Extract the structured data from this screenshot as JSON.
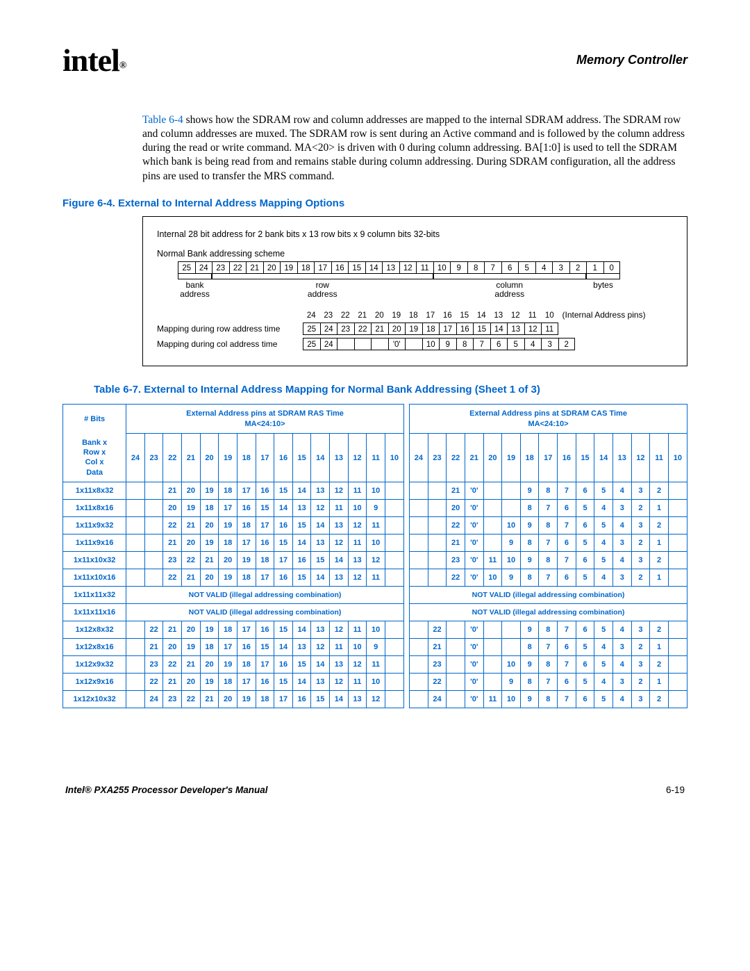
{
  "header": {
    "logo_text": "intel",
    "logo_reg": "®",
    "section_title": "Memory Controller"
  },
  "paragraph": {
    "ref": "Table 6-4",
    "text": " shows how the SDRAM row and column addresses are mapped to the internal SDRAM address. The SDRAM row and column addresses are muxed. The SDRAM row is sent during an Active command and is followed by the column address during the read or write command. MA<20> is driven with 0 during column addressing. BA[1:0] is used to tell the SDRAM which bank is being read from and remains stable during column addressing. During SDRAM configuration, all the address pins are used to transfer the MRS command."
  },
  "figure": {
    "caption": "Figure 6-4. External to Internal Address Mapping Options",
    "line1": "Internal 28 bit address for 2 bank bits x 13 row bits x 9 column bits 32-bits",
    "line2": "Normal Bank addressing scheme",
    "bits_top": [
      "25",
      "24",
      "23",
      "22",
      "21",
      "20",
      "19",
      "18",
      "17",
      "16",
      "15",
      "14",
      "13",
      "12",
      "11",
      "10",
      "9",
      "8",
      "7",
      "6",
      "5",
      "4",
      "3",
      "2",
      "1",
      "0"
    ],
    "spans": [
      {
        "label": "bank address",
        "col_start": 0,
        "col_end": 1
      },
      {
        "label": "row address",
        "col_start": 2,
        "col_end": 14
      },
      {
        "label": "column address",
        "col_start": 15,
        "col_end": 23
      },
      {
        "label": "bytes",
        "col_start": 24,
        "col_end": 25
      }
    ],
    "internal_pins": [
      "24",
      "23",
      "22",
      "21",
      "20",
      "19",
      "18",
      "17",
      "16",
      "15",
      "14",
      "13",
      "12",
      "11",
      "10"
    ],
    "pins_suffix": "(Internal Address pins)",
    "row_map_label": "Mapping during row address time",
    "row_map_cells": [
      "25",
      "24",
      "23",
      "22",
      "21",
      "20",
      "19",
      "18",
      "17",
      "16",
      "15",
      "14",
      "13",
      "12",
      "11"
    ],
    "col_map_label": "Mapping during col address time",
    "col_map_cells": [
      "25",
      "24",
      "",
      "",
      "",
      " '0' ",
      "",
      "10",
      "9",
      "8",
      "7",
      "6",
      "5",
      "4",
      "3",
      "2"
    ],
    "cell_w": 24.5
  },
  "table": {
    "caption": "Table 6-7. External to Internal Address Mapping for Normal Bank Addressing (Sheet 1 of 3)",
    "header_top_left": "# Bits",
    "header_top_left2_lines": [
      "Bank x",
      "Row x",
      "Col x",
      "Data"
    ],
    "header_group_ras": "External Address pins at SDRAM RAS Time",
    "header_group_cas": "External Address pins at SDRAM CAS Time",
    "header_ma": "MA<24:10>",
    "col_numbers": [
      "24",
      "23",
      "22",
      "21",
      "20",
      "19",
      "18",
      "17",
      "16",
      "15",
      "14",
      "13",
      "12",
      "11",
      "10"
    ],
    "not_valid_text": "NOT VALID (illegal addressing combination)",
    "rows": [
      {
        "name": "1x11x8x32",
        "ras": [
          "",
          "",
          "21",
          "20",
          "19",
          "18",
          "17",
          "16",
          "15",
          "14",
          "13",
          "12",
          "11",
          "10",
          ""
        ],
        "cas": [
          "",
          "",
          "21",
          "'0'",
          "",
          "",
          "9",
          "8",
          "7",
          "6",
          "5",
          "4",
          "3",
          "2",
          ""
        ]
      },
      {
        "name": "1x11x8x16",
        "ras": [
          "",
          "",
          "20",
          "19",
          "18",
          "17",
          "16",
          "15",
          "14",
          "13",
          "12",
          "11",
          "10",
          "9",
          ""
        ],
        "cas": [
          "",
          "",
          "20",
          "'0'",
          "",
          "",
          "8",
          "7",
          "6",
          "5",
          "4",
          "3",
          "2",
          "1",
          ""
        ]
      },
      {
        "name": "1x11x9x32",
        "ras": [
          "",
          "",
          "22",
          "21",
          "20",
          "19",
          "18",
          "17",
          "16",
          "15",
          "14",
          "13",
          "12",
          "11",
          ""
        ],
        "cas": [
          "",
          "",
          "22",
          "'0'",
          "",
          "10",
          "9",
          "8",
          "7",
          "6",
          "5",
          "4",
          "3",
          "2",
          ""
        ]
      },
      {
        "name": "1x11x9x16",
        "ras": [
          "",
          "",
          "21",
          "20",
          "19",
          "18",
          "17",
          "16",
          "15",
          "14",
          "13",
          "12",
          "11",
          "10",
          ""
        ],
        "cas": [
          "",
          "",
          "21",
          "'0'",
          "",
          "9",
          "8",
          "7",
          "6",
          "5",
          "4",
          "3",
          "2",
          "1",
          ""
        ]
      },
      {
        "name": "1x11x10x32",
        "ras": [
          "",
          "",
          "23",
          "22",
          "21",
          "20",
          "19",
          "18",
          "17",
          "16",
          "15",
          "14",
          "13",
          "12",
          ""
        ],
        "cas": [
          "",
          "",
          "23",
          "'0'",
          "11",
          "10",
          "9",
          "8",
          "7",
          "6",
          "5",
          "4",
          "3",
          "2",
          ""
        ]
      },
      {
        "name": "1x11x10x16",
        "ras": [
          "",
          "",
          "22",
          "21",
          "20",
          "19",
          "18",
          "17",
          "16",
          "15",
          "14",
          "13",
          "12",
          "11",
          ""
        ],
        "cas": [
          "",
          "",
          "22",
          "'0'",
          "10",
          "9",
          "8",
          "7",
          "6",
          "5",
          "4",
          "3",
          "2",
          "1",
          ""
        ]
      },
      {
        "name": "1x11x11x32",
        "nv": true
      },
      {
        "name": "1x11x11x16",
        "nv": true
      },
      {
        "name": "1x12x8x32",
        "ras": [
          "",
          "22",
          "21",
          "20",
          "19",
          "18",
          "17",
          "16",
          "15",
          "14",
          "13",
          "12",
          "11",
          "10",
          ""
        ],
        "cas": [
          "",
          "22",
          "",
          "'0'",
          "",
          "",
          "9",
          "8",
          "7",
          "6",
          "5",
          "4",
          "3",
          "2",
          ""
        ]
      },
      {
        "name": "1x12x8x16",
        "ras": [
          "",
          "21",
          "20",
          "19",
          "18",
          "17",
          "16",
          "15",
          "14",
          "13",
          "12",
          "11",
          "10",
          "9",
          ""
        ],
        "cas": [
          "",
          "21",
          "",
          "'0'",
          "",
          "",
          "8",
          "7",
          "6",
          "5",
          "4",
          "3",
          "2",
          "1",
          ""
        ]
      },
      {
        "name": "1x12x9x32",
        "ras": [
          "",
          "23",
          "22",
          "21",
          "20",
          "19",
          "18",
          "17",
          "16",
          "15",
          "14",
          "13",
          "12",
          "11",
          ""
        ],
        "cas": [
          "",
          "23",
          "",
          "'0'",
          "",
          "10",
          "9",
          "8",
          "7",
          "6",
          "5",
          "4",
          "3",
          "2",
          ""
        ]
      },
      {
        "name": "1x12x9x16",
        "ras": [
          "",
          "22",
          "21",
          "20",
          "19",
          "18",
          "17",
          "16",
          "15",
          "14",
          "13",
          "12",
          "11",
          "10",
          ""
        ],
        "cas": [
          "",
          "22",
          "",
          "'0'",
          "",
          "9",
          "8",
          "7",
          "6",
          "5",
          "4",
          "3",
          "2",
          "1",
          ""
        ]
      },
      {
        "name": "1x12x10x32",
        "ras": [
          "",
          "24",
          "23",
          "22",
          "21",
          "20",
          "19",
          "18",
          "17",
          "16",
          "15",
          "14",
          "13",
          "12",
          ""
        ],
        "cas": [
          "",
          "24",
          "",
          "'0'",
          "11",
          "10",
          "9",
          "8",
          "7",
          "6",
          "5",
          "4",
          "3",
          "2",
          ""
        ]
      }
    ]
  },
  "footer": {
    "left": "Intel® PXA255 Processor Developer's Manual",
    "right": "6-19"
  },
  "colors": {
    "link_blue": "#0066cc",
    "text_black": "#000000",
    "background": "#ffffff"
  }
}
